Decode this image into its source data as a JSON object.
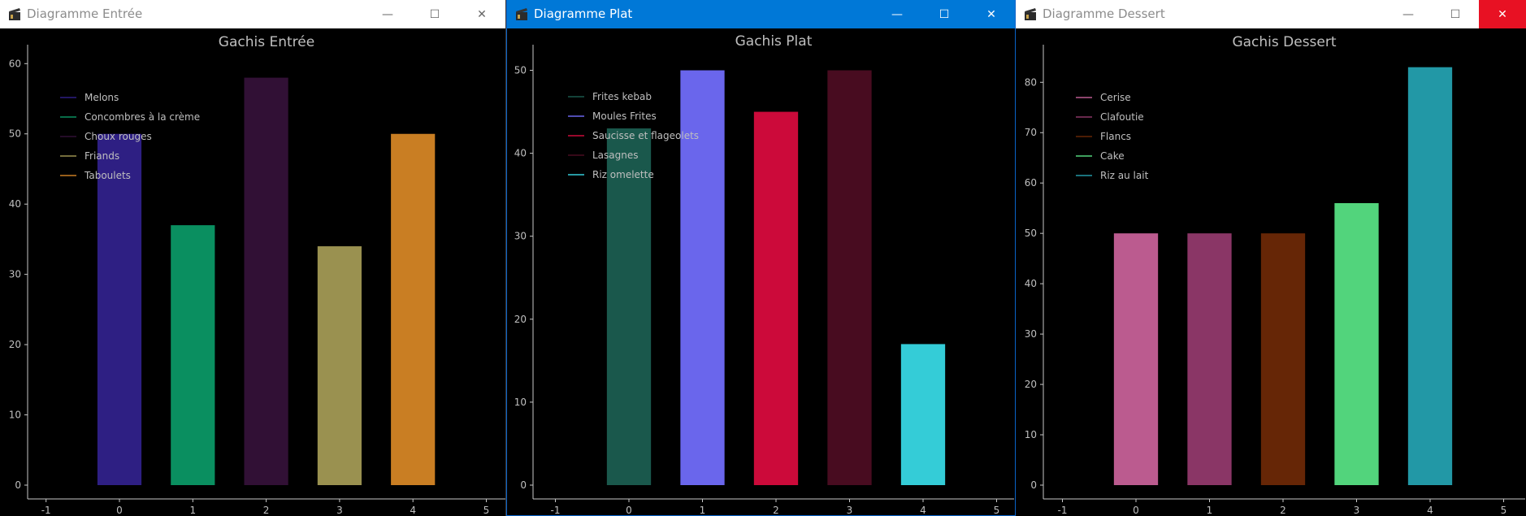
{
  "windows": [
    {
      "title": "Diagramme Entrée",
      "active": false,
      "close_hover": false,
      "controls": {
        "minimize": "minimize-icon",
        "maximize": "maximize-icon",
        "close": "close-icon"
      }
    },
    {
      "title": "Diagramme Plat",
      "active": true,
      "close_hover": false,
      "controls": {
        "minimize": "minimize-icon",
        "maximize": "maximize-icon",
        "close": "close-icon"
      }
    },
    {
      "title": "Diagramme Dessert",
      "active": false,
      "close_hover": true,
      "controls": {
        "minimize": "minimize-icon",
        "maximize": "maximize-icon",
        "close": "close-icon"
      }
    }
  ],
  "colors": {
    "plot_background": "#000000",
    "axis": "#c8c8c8",
    "text": "#bfbfbf",
    "active_titlebar": "#0078d7",
    "close_hover": "#e81123"
  },
  "chart_data": [
    {
      "type": "bar",
      "title": "Gachis Entrée",
      "x": [
        0,
        1,
        2,
        3,
        4
      ],
      "values": [
        50,
        37,
        58,
        34,
        50
      ],
      "labels": [
        "Melons",
        "Concombres à la crème",
        "Choux rouges",
        "Friands",
        "Taboulets"
      ],
      "colors": [
        "#2e1f83",
        "#0a8f60",
        "#311035",
        "#9a9150",
        "#c97e23"
      ],
      "xlim": [
        -1,
        5
      ],
      "ylim": [
        -2,
        62
      ],
      "xticks": [
        -1,
        0,
        1,
        2,
        3,
        4,
        5
      ],
      "yticks": [
        0,
        10,
        20,
        30,
        40,
        50,
        60
      ],
      "legend": "top-left",
      "grid": false
    },
    {
      "type": "bar",
      "title": "Gachis Plat",
      "x": [
        0,
        1,
        2,
        3,
        4
      ],
      "values": [
        43,
        50,
        45,
        50,
        17
      ],
      "labels": [
        "Frites kebab",
        "Moules Frites",
        "Saucisse et flageolets",
        "Lasagnes",
        "Riz omelette"
      ],
      "colors": [
        "#1a584c",
        "#6a66ec",
        "#cc0a3a",
        "#480c20",
        "#34ccd7"
      ],
      "xlim": [
        -1,
        5
      ],
      "ylim": [
        -2,
        52.5
      ],
      "xticks": [
        -1,
        0,
        1,
        2,
        3,
        4,
        5
      ],
      "yticks": [
        0,
        10,
        20,
        30,
        40,
        50
      ],
      "legend": "top-left",
      "grid": false
    },
    {
      "type": "bar",
      "title": "Gachis Dessert",
      "x": [
        0,
        1,
        2,
        3,
        4
      ],
      "values": [
        50,
        50,
        50,
        56,
        83
      ],
      "labels": [
        "Cerise",
        "Clafoutie",
        "Flancs",
        "Cake",
        "Riz au lait"
      ],
      "colors": [
        "#bb5b8f",
        "#8a3666",
        "#662606",
        "#52d47c",
        "#2298a6"
      ],
      "xlim": [
        -1,
        5
      ],
      "ylim": [
        -2,
        86.5
      ],
      "xticks": [
        -1,
        0,
        1,
        2,
        3,
        4,
        5
      ],
      "yticks": [
        0,
        10,
        20,
        30,
        40,
        50,
        60,
        70,
        80
      ],
      "legend": "top-left",
      "grid": false
    }
  ]
}
